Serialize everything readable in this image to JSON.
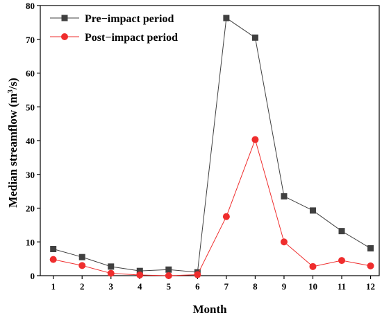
{
  "chart_data": {
    "type": "line",
    "title": "",
    "xlabel": "Month",
    "ylabel_main": "Median streamflow (m",
    "ylabel_sup": "3",
    "ylabel_tail": "/s)",
    "xlim": [
      1,
      12
    ],
    "ylim": [
      0,
      80
    ],
    "x": [
      1,
      2,
      3,
      4,
      5,
      6,
      7,
      8,
      9,
      10,
      11,
      12
    ],
    "x_tick_labels": [
      "1",
      "2",
      "3",
      "4",
      "5",
      "6",
      "7",
      "8",
      "9",
      "10",
      "11",
      "12"
    ],
    "y_tick_labels": [
      "0",
      "10",
      "20",
      "30",
      "40",
      "50",
      "60",
      "70",
      "80"
    ],
    "y_ticks": [
      0,
      10,
      20,
      30,
      40,
      50,
      60,
      70,
      80
    ],
    "grid": false,
    "legend_position": "top-left",
    "series": [
      {
        "name": "Pre−impact period",
        "marker": "square",
        "color": "#404040",
        "values": [
          7.9,
          5.5,
          2.7,
          1.4,
          1.8,
          1.0,
          76.3,
          70.5,
          23.5,
          19.3,
          13.2,
          8.1
        ]
      },
      {
        "name": "Post−impact period",
        "marker": "circle",
        "color": "#ef2d2d",
        "values": [
          4.8,
          3.0,
          0.7,
          0.2,
          0.0,
          0.3,
          17.5,
          40.3,
          10.0,
          2.7,
          4.5,
          2.9
        ]
      }
    ]
  }
}
